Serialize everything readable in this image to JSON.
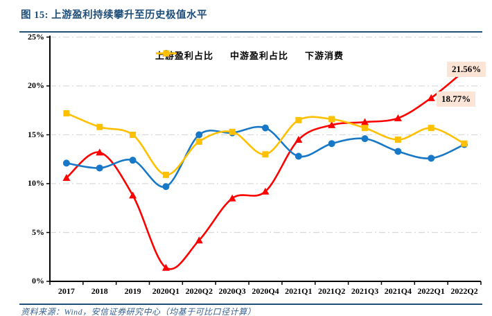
{
  "header": {
    "title": "图 15: 上游盈利持续攀升至历史极值水平"
  },
  "footer": {
    "source": "资料来源：Wind，安信证券研究中心（均基于可比口径计算）"
  },
  "colors": {
    "accent_navy": "#1F4E79",
    "source_blue": "#365F91",
    "gridline": "#D9D9D9",
    "axis": "#000000",
    "annotation_bg": "#FCE4D6"
  },
  "chart_data": {
    "type": "line",
    "title": "上游盈利持续攀升至历史极值水平",
    "categories": [
      "2017",
      "2018",
      "2019",
      "2020Q1",
      "2020Q2",
      "2020Q3",
      "2020Q4",
      "2021Q1",
      "2021Q2",
      "2021Q3",
      "2021Q4",
      "2022Q1",
      "2022Q2"
    ],
    "series": [
      {
        "name": "上游盈利占比",
        "color": "#FF0000",
        "marker": "triangle",
        "values": [
          10.6,
          13.2,
          8.8,
          1.4,
          4.2,
          8.5,
          9.2,
          14.5,
          16.0,
          16.3,
          16.7,
          18.77,
          21.56
        ]
      },
      {
        "name": "中游盈利占比",
        "color": "#1878C8",
        "marker": "circle",
        "values": [
          12.1,
          11.6,
          12.4,
          9.7,
          15.0,
          15.2,
          15.7,
          12.8,
          14.1,
          14.6,
          13.3,
          12.6,
          14.0
        ]
      },
      {
        "name": "下游消费",
        "color": "#FFC000",
        "marker": "square",
        "values": [
          17.2,
          15.8,
          15.0,
          10.9,
          14.3,
          15.3,
          13.0,
          16.5,
          16.6,
          15.7,
          14.5,
          15.7,
          14.1
        ]
      }
    ],
    "xlabel": "",
    "ylabel": "",
    "ylim": [
      0,
      25
    ],
    "ytick_step": 5,
    "ytick_labels": [
      "0%",
      "5%",
      "10%",
      "15%",
      "20%",
      "25%"
    ],
    "grid": "horizontal dash-dot",
    "legend_position": "top-center",
    "line_style": "smooth",
    "annotations": [
      {
        "text": "21.56%",
        "series": "上游盈利占比",
        "category": "2022Q2",
        "value": 21.56
      },
      {
        "text": "18.77%",
        "series": "上游盈利占比",
        "category": "2022Q1",
        "value": 18.77
      }
    ]
  }
}
